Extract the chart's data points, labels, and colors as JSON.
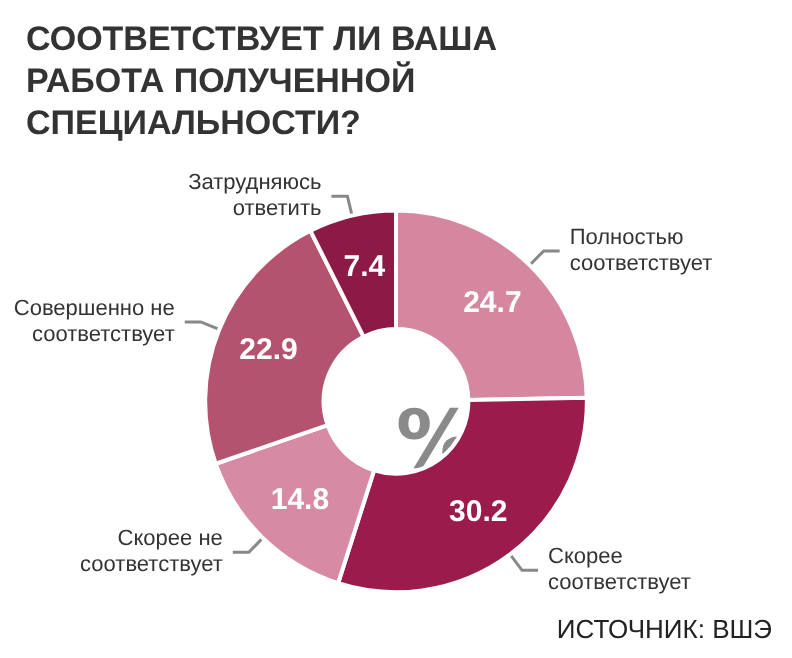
{
  "chart_data": {
    "type": "donut",
    "title": "СООТВЕТСТВУЕТ ЛИ ВАША РАБОТА ПОЛУЧЕННОЙ СПЕЦИАЛЬНОСТИ?",
    "categories": [
      "Полностью соответствует",
      "Скорее соответствует",
      "Скорее не соответствует",
      "Совершенно не соответствует",
      "Затрудняюсь ответить"
    ],
    "values": [
      24.7,
      30.2,
      14.8,
      22.9,
      7.4
    ],
    "colors": [
      "#d4879e",
      "#9b1b4c",
      "#d68aa3",
      "#b4536e",
      "#8c1a45"
    ],
    "data_labels": true,
    "annotations": [
      "%",
      "ИСТОЧНИК: ВШЭ"
    ],
    "legend": false
  }
}
